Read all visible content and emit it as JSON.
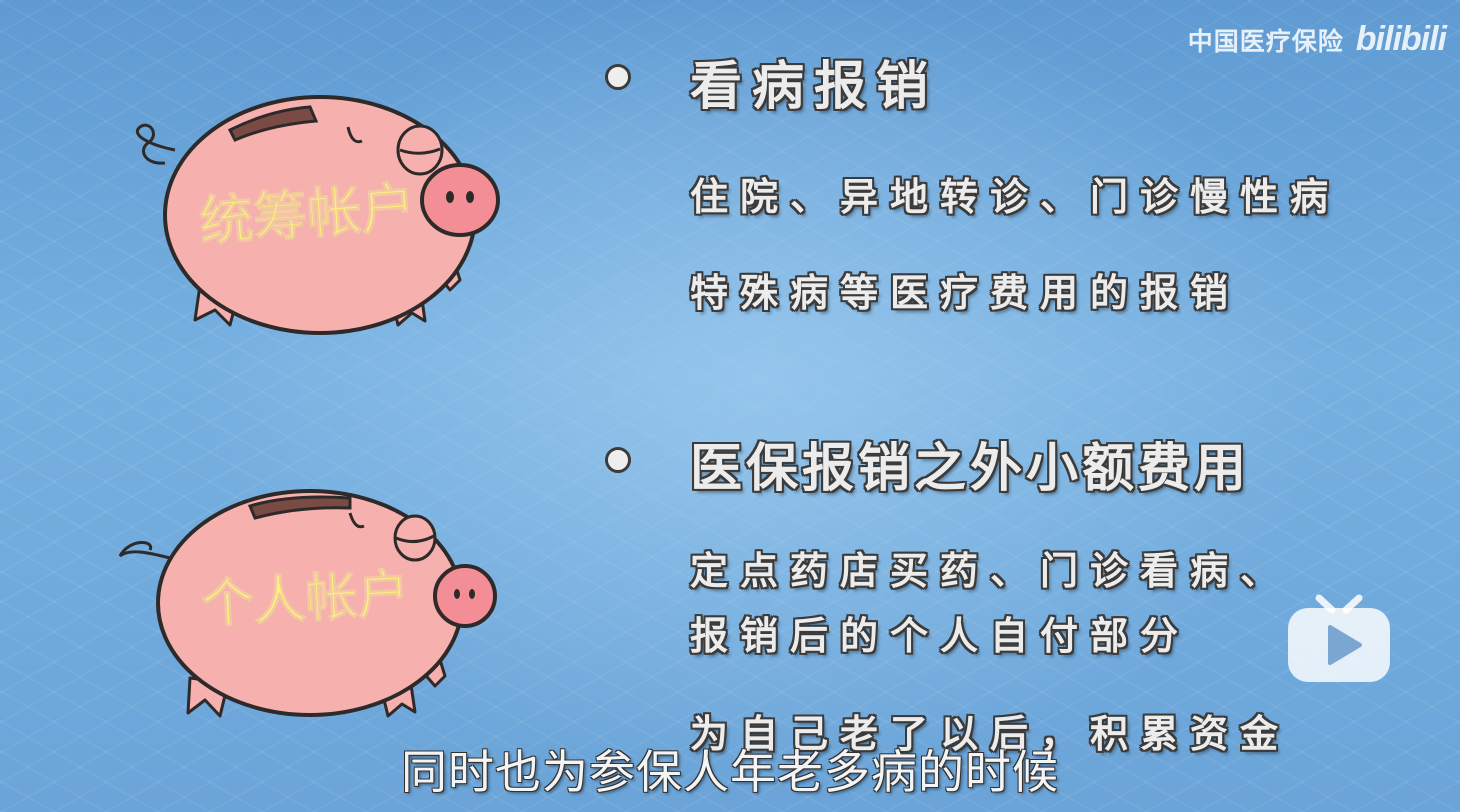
{
  "watermark": {
    "channel_text": "中国医疗保险",
    "logo_text": "bilibili"
  },
  "pigs": [
    {
      "label": "统筹帐户"
    },
    {
      "label": "个人帐户"
    }
  ],
  "sections": [
    {
      "heading": "看病报销",
      "lines": [
        "住院、异地转诊、门诊慢性病",
        "特殊病等医疗费用的报销"
      ]
    },
    {
      "heading": "医保报销之外小额费用",
      "lines": [
        "定点药店买药、门诊看病、",
        "报销后的个人自付部分",
        "为自己老了以后，积累资金"
      ]
    }
  ],
  "subtitle": "同时也为参保人年老多病的时候",
  "player": {
    "play_icon": "play-icon"
  },
  "colors": {
    "pig": "#f6b0ae",
    "pig_outline": "#2e2a2a",
    "label": "#fff27a",
    "bg": "#6aa3d6"
  }
}
